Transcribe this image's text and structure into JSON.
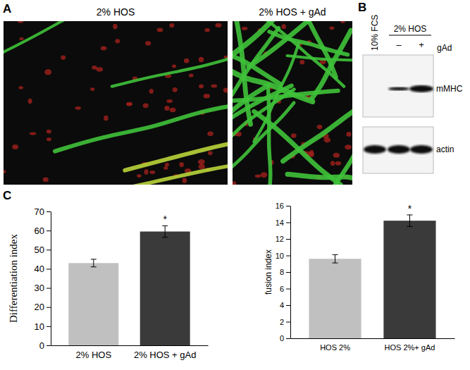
{
  "panel_a": {
    "label": "A",
    "images": [
      {
        "title": "2% HOS"
      },
      {
        "title": "2% HOS + gAd"
      }
    ]
  },
  "panel_b": {
    "label": "B",
    "lane_label": "10% FCS",
    "group_label": "2% HOS",
    "treatment_signs": [
      "–",
      "+"
    ],
    "treatment_label": "gAd",
    "blots": [
      "mMHC",
      "actin"
    ]
  },
  "panel_c": {
    "label": "C"
  },
  "chart_data": [
    {
      "type": "bar",
      "y_label": "Differentiation index",
      "categories": [
        "2% HOS",
        "2% HOS + gAd"
      ],
      "values": [
        43,
        59.5
      ],
      "errors": [
        2,
        3
      ],
      "annotations": [
        null,
        "*"
      ],
      "colors": [
        "#c0c0c0",
        "#3a3a3a"
      ],
      "ylim": [
        0,
        70
      ],
      "yticks": [
        0,
        10,
        20,
        30,
        40,
        50,
        60,
        70
      ]
    },
    {
      "type": "bar",
      "y_label": "fusion index",
      "categories": [
        "HOS 2%",
        "HOS 2%+ gAd"
      ],
      "values": [
        9.6,
        14.2
      ],
      "errors": [
        0.5,
        0.7
      ],
      "annotations": [
        null,
        "*"
      ],
      "colors": [
        "#c0c0c0",
        "#3a3a3a"
      ],
      "ylim": [
        0,
        16
      ],
      "yticks": [
        0,
        2,
        4,
        6,
        8,
        10,
        12,
        14,
        16
      ]
    }
  ]
}
